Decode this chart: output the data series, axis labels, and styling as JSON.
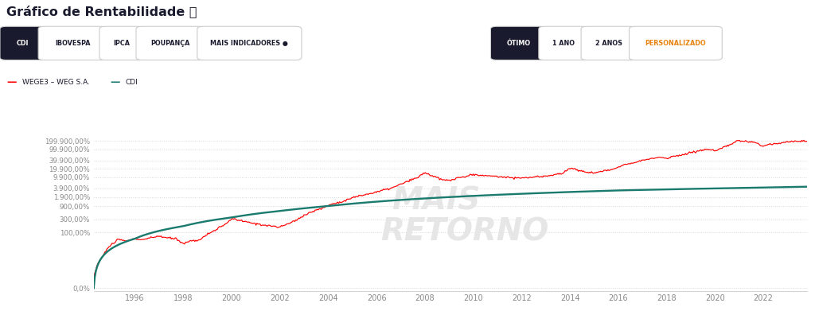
{
  "title": "Gráfico de Rentabilidade ⓘ",
  "legend_wege": "WEGE3 – WEG S.A.",
  "legend_cdi": "CDI",
  "x_start_year": 1994.3,
  "x_end_year": 2023.8,
  "x_ticks": [
    1996,
    1998,
    2000,
    2002,
    2004,
    2006,
    2008,
    2010,
    2012,
    2014,
    2016,
    2018,
    2020,
    2022
  ],
  "y_ticks_vals": [
    1,
    101,
    301,
    901,
    1901,
    3901,
    9901,
    19901,
    39901,
    99901,
    199901
  ],
  "y_tick_labels": [
    "0,0%",
    "100,00%",
    "300,00%",
    "900,00%",
    "1.900,00%",
    "3.900,00%",
    "9.900,00%",
    "19.900,00%",
    "39.900,00%",
    "99.900,00%",
    "199.900,00%"
  ],
  "wege_color": "#ff0000",
  "cdi_color": "#1a7a6e",
  "bg_color": "#ffffff",
  "grid_color": "#d8d8d8",
  "title_color": "#1a1a2e",
  "axis_label_color": "#888888",
  "watermark_text1": "MAIS",
  "watermark_text2": "RETORNO",
  "watermark_color": "#e6e6e6",
  "top_buttons_left": [
    "CDI",
    "IBOVESPA",
    "IPCA",
    "POUPANÇA",
    "MAIS INDICADORES ●"
  ],
  "top_buttons_right": [
    "ÓTIMO",
    "1 ANO",
    "2 ANOS",
    "PERSONALIZADO"
  ],
  "btn_dark_bg": "#1a1a2e",
  "btn_dark_fg": "#ffffff",
  "btn_light_bg": "#ffffff",
  "btn_light_fg": "#1a1a2e",
  "btn_orange_fg": "#e8820c",
  "btn_border": "#cccccc",
  "fig_width": 10.24,
  "fig_height": 3.91,
  "dpi": 100,
  "wege_anchors_x": [
    1994.3,
    1994.7,
    1995.0,
    1995.3,
    1995.7,
    1996.0,
    1996.3,
    1996.7,
    1997.0,
    1997.3,
    1997.7,
    1998.0,
    1998.3,
    1998.7,
    1999.0,
    1999.3,
    1999.7,
    2000.0,
    2000.3,
    2000.7,
    2001.0,
    2001.3,
    2001.7,
    2002.0,
    2002.3,
    2002.7,
    2003.0,
    2003.3,
    2003.7,
    2004.0,
    2004.3,
    2004.7,
    2005.0,
    2005.3,
    2005.7,
    2006.0,
    2006.3,
    2006.7,
    2007.0,
    2007.3,
    2007.7,
    2008.0,
    2008.3,
    2008.7,
    2009.0,
    2009.3,
    2009.7,
    2010.0,
    2010.3,
    2010.7,
    2011.0,
    2011.3,
    2011.7,
    2012.0,
    2012.3,
    2012.7,
    2013.0,
    2013.3,
    2013.7,
    2014.0,
    2014.3,
    2014.7,
    2015.0,
    2015.3,
    2015.7,
    2016.0,
    2016.3,
    2016.7,
    2017.0,
    2017.3,
    2017.7,
    2018.0,
    2018.3,
    2018.7,
    2019.0,
    2019.3,
    2019.7,
    2020.0,
    2020.3,
    2020.7,
    2021.0,
    2021.3,
    2021.7,
    2022.0,
    2022.3,
    2022.7,
    2023.0,
    2023.3,
    2023.7
  ],
  "wege_anchors_y": [
    2,
    15,
    35,
    55,
    50,
    60,
    55,
    65,
    75,
    65,
    60,
    40,
    50,
    55,
    85,
    120,
    180,
    310,
    280,
    230,
    210,
    190,
    170,
    155,
    200,
    280,
    420,
    550,
    720,
    950,
    1150,
    1400,
    1800,
    2100,
    2500,
    2900,
    3400,
    4200,
    5500,
    7000,
    9500,
    14500,
    11000,
    8000,
    7500,
    9000,
    10500,
    12500,
    11500,
    11000,
    10500,
    10000,
    9500,
    9200,
    9600,
    10200,
    11000,
    12000,
    13500,
    21000,
    18000,
    15000,
    14000,
    16000,
    18000,
    23000,
    29000,
    35000,
    40000,
    44000,
    52000,
    48000,
    55000,
    65000,
    75000,
    88000,
    100000,
    85000,
    110000,
    155000,
    210000,
    190000,
    170000,
    130000,
    155000,
    170000,
    185000,
    195000,
    195000
  ],
  "cdi_anchors_x": [
    1994.3,
    1996.0,
    1998.0,
    2000.0,
    2002.0,
    2004.0,
    2006.0,
    2008.0,
    2010.0,
    2012.0,
    2014.0,
    2016.0,
    2018.0,
    2020.0,
    2022.0,
    2023.8
  ],
  "cdi_anchors_y": [
    1,
    60,
    170,
    350,
    600,
    900,
    1300,
    1700,
    2100,
    2500,
    2900,
    3300,
    3600,
    3900,
    4200,
    4500
  ]
}
